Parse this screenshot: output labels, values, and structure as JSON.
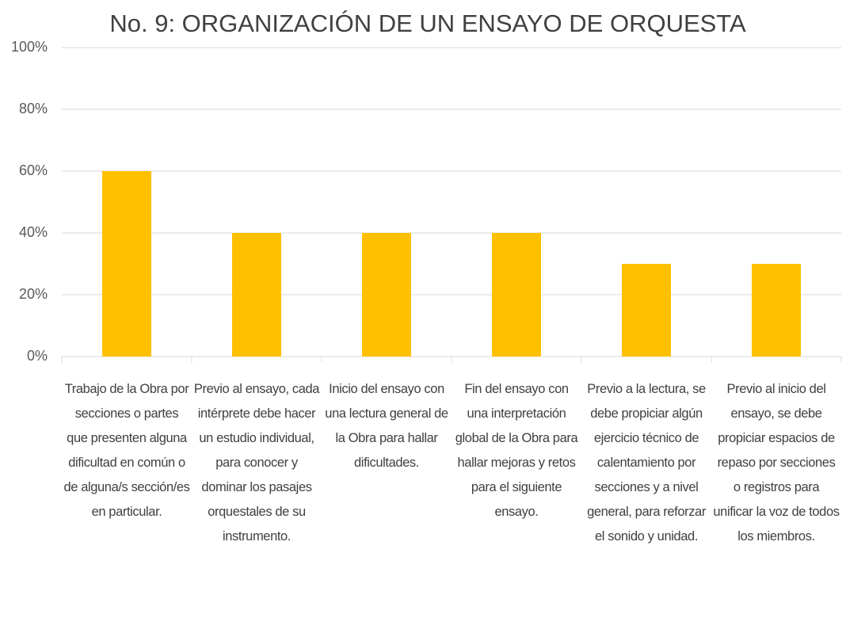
{
  "chart_data": {
    "type": "bar",
    "title": "No. 9: ORGANIZACIÓN DE UN ENSAYO DE ORQUESTA",
    "categories": [
      "Trabajo de la Obra por secciones o partes que presenten alguna dificultad en común o de alguna/s sección/es en particular.",
      "Previo al ensayo, cada intérprete debe hacer un estudio individual, para conocer y dominar los pasajes orquestales de su instrumento.",
      "Inicio del ensayo con una lectura general de la Obra para hallar dificultades.",
      "Fin del ensayo con una interpretación global de la Obra para hallar mejoras y retos para el siguiente ensayo.",
      "Previo a la lectura, se debe propiciar algún ejercicio técnico de calentamiento por secciones y a nivel general, para reforzar el sonido y unidad.",
      "Previo al inicio del ensayo, se debe propiciar espacios de repaso por secciones o registros para unificar la voz de todos los miembros."
    ],
    "values": [
      60,
      40,
      40,
      40,
      30,
      30
    ],
    "color": "#ffc000",
    "ylim": [
      0,
      100
    ],
    "yticks": [
      {
        "value": 0,
        "label": "0%"
      },
      {
        "value": 20,
        "label": "20%"
      },
      {
        "value": 40,
        "label": "40%"
      },
      {
        "value": 60,
        "label": "60%"
      },
      {
        "value": 80,
        "label": "80%"
      },
      {
        "value": 100,
        "label": "100%"
      }
    ],
    "grid": true
  }
}
